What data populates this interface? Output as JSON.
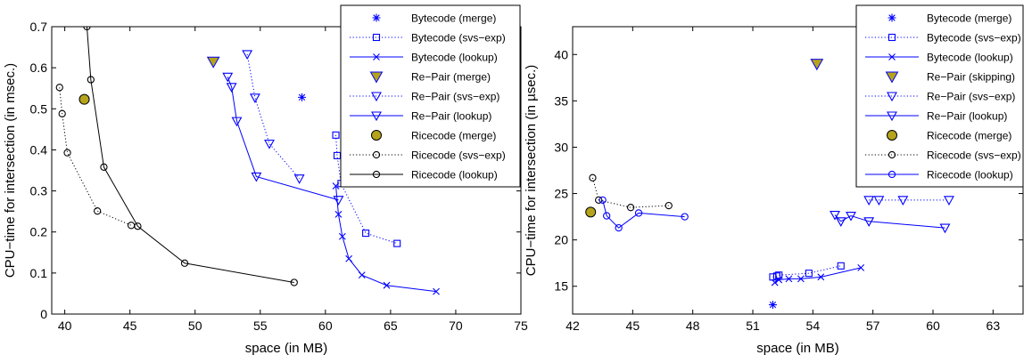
{
  "chart_data": [
    {
      "type": "scatter",
      "xlabel": "space (in MB)",
      "ylabel": "CPU−time for intersection (in msec.)",
      "xlim": [
        39,
        75
      ],
      "ylim": [
        0,
        0.7
      ],
      "xticks": [
        40,
        45,
        50,
        55,
        60,
        65,
        70,
        75
      ],
      "yticks": [
        0,
        0.1,
        0.2,
        0.3,
        0.4,
        0.5,
        0.6,
        0.7
      ],
      "x_tick_labels": [
        "40",
        "45",
        "50",
        "55",
        "60",
        "65",
        "70",
        "75"
      ],
      "y_tick_labels": [
        "0",
        "0.1",
        "0.2",
        "0.3",
        "0.4",
        "0.5",
        "0.6",
        "0.7"
      ],
      "grid": false,
      "legend_position": "top-right",
      "series": [
        {
          "name": "Bytecode (merge)",
          "color": "#0000ff",
          "marker": "asterisk",
          "line": "none",
          "x": [
            58.2
          ],
          "y": [
            0.528
          ]
        },
        {
          "name": "Bytecode (svs−exp)",
          "color": "#0000ff",
          "marker": "square",
          "line": "dotted",
          "x": [
            60.8,
            60.9,
            61.2,
            63.1,
            65.5
          ],
          "y": [
            0.436,
            0.386,
            0.318,
            0.197,
            0.172
          ]
        },
        {
          "name": "Bytecode (lookup)",
          "color": "#0000ff",
          "marker": "x",
          "line": "solid",
          "x": [
            60.8,
            61.0,
            61.3,
            61.8,
            62.8,
            64.7,
            68.5
          ],
          "y": [
            0.312,
            0.243,
            0.189,
            0.135,
            0.095,
            0.07,
            0.055
          ]
        },
        {
          "name": "Re−Pair (merge)",
          "color": "#0000ff",
          "face": "#b5a31c",
          "marker": "triangle-down-filled",
          "line": "none",
          "x": [
            51.4
          ],
          "y": [
            0.615
          ]
        },
        {
          "name": "Re−Pair (svs−exp)",
          "color": "#0000ff",
          "marker": "triangle-down",
          "line": "dotted",
          "x": [
            54.0,
            54.6,
            55.7,
            58.0
          ],
          "y": [
            0.633,
            0.527,
            0.415,
            0.33
          ]
        },
        {
          "name": "Re−Pair (lookup)",
          "color": "#0000ff",
          "marker": "triangle-down",
          "line": "solid",
          "x": [
            52.5,
            52.8,
            53.2,
            54.7,
            61.0
          ],
          "y": [
            0.578,
            0.553,
            0.47,
            0.335,
            0.278
          ]
        },
        {
          "name": "Ricecode (merge)",
          "color": "#000000",
          "face": "#b5a31c",
          "marker": "circle-filled",
          "line": "none",
          "x": [
            41.5
          ],
          "y": [
            0.523
          ]
        },
        {
          "name": "Ricecode (svs−exp)",
          "color": "#000000",
          "marker": "circle",
          "line": "dotted",
          "x": [
            39.6,
            39.8,
            40.2,
            42.5,
            45.1
          ],
          "y": [
            0.552,
            0.488,
            0.393,
            0.251,
            0.216
          ]
        },
        {
          "name": "Ricecode (lookup)",
          "color": "#000000",
          "marker": "circle",
          "line": "solid",
          "x": [
            41.7,
            42.0,
            43.0,
            45.6,
            49.2,
            57.6
          ],
          "y": [
            0.7,
            0.571,
            0.358,
            0.214,
            0.124,
            0.077
          ]
        }
      ]
    },
    {
      "type": "scatter",
      "xlabel": "space (in MB)",
      "ylabel": "CPU−time for intersection (in µsec.)",
      "xlim": [
        42,
        64.5
      ],
      "ylim": [
        12,
        43
      ],
      "xticks": [
        42,
        45,
        48,
        51,
        54,
        57,
        60,
        63
      ],
      "yticks": [
        15,
        20,
        25,
        30,
        35,
        40
      ],
      "x_tick_labels": [
        "42",
        "45",
        "48",
        "51",
        "54",
        "57",
        "60",
        "63"
      ],
      "y_tick_labels": [
        "15",
        "20",
        "25",
        "30",
        "35",
        "40"
      ],
      "grid": false,
      "legend_position": "top-right",
      "series": [
        {
          "name": "Bytecode (merge)",
          "color": "#0000ff",
          "marker": "asterisk",
          "line": "none",
          "x": [
            52.0
          ],
          "y": [
            13.0
          ]
        },
        {
          "name": "Bytecode (svs−exp)",
          "color": "#0000ff",
          "marker": "square",
          "line": "dotted",
          "x": [
            52.0,
            52.2,
            52.3,
            53.8,
            55.4
          ],
          "y": [
            16.0,
            16.1,
            16.2,
            16.4,
            17.2
          ]
        },
        {
          "name": "Bytecode (lookup)",
          "color": "#0000ff",
          "marker": "x",
          "line": "solid",
          "x": [
            52.1,
            52.3,
            52.8,
            53.4,
            54.4,
            56.4
          ],
          "y": [
            15.4,
            15.7,
            15.8,
            15.8,
            16.0,
            17.0
          ]
        },
        {
          "name": "Re−Pair (skipping)",
          "color": "#0000ff",
          "face": "#b5a31c",
          "marker": "triangle-down-filled",
          "line": "none",
          "x": [
            54.2
          ],
          "y": [
            39.0
          ]
        },
        {
          "name": "Re−Pair (svs−exp)",
          "color": "#0000ff",
          "marker": "triangle-down",
          "line": "dotted",
          "x": [
            56.8,
            57.3,
            58.5,
            60.8
          ],
          "y": [
            24.3,
            24.3,
            24.3,
            24.3
          ]
        },
        {
          "name": "Re−Pair (lookup)",
          "color": "#0000ff",
          "marker": "triangle-down",
          "line": "solid",
          "x": [
            55.1,
            55.4,
            55.9,
            56.8,
            60.6
          ],
          "y": [
            22.7,
            22.0,
            22.6,
            22.0,
            21.3
          ]
        },
        {
          "name": "Ricecode (merge)",
          "color": "#000000",
          "face": "#b5a31c",
          "marker": "circle-filled",
          "line": "none",
          "x": [
            42.9
          ],
          "y": [
            23.0
          ]
        },
        {
          "name": "Ricecode (svs−exp)",
          "color": "#000000",
          "marker": "circle",
          "line": "dotted",
          "x": [
            43.0,
            43.3,
            44.9,
            46.8
          ],
          "y": [
            26.7,
            24.3,
            23.5,
            23.7
          ]
        },
        {
          "name": "Ricecode (lookup)",
          "color": "#0000ff",
          "marker": "circle",
          "line": "solid",
          "x": [
            43.5,
            43.7,
            44.3,
            45.3,
            47.6
          ],
          "y": [
            24.3,
            22.6,
            21.3,
            22.9,
            22.5
          ]
        }
      ]
    }
  ]
}
